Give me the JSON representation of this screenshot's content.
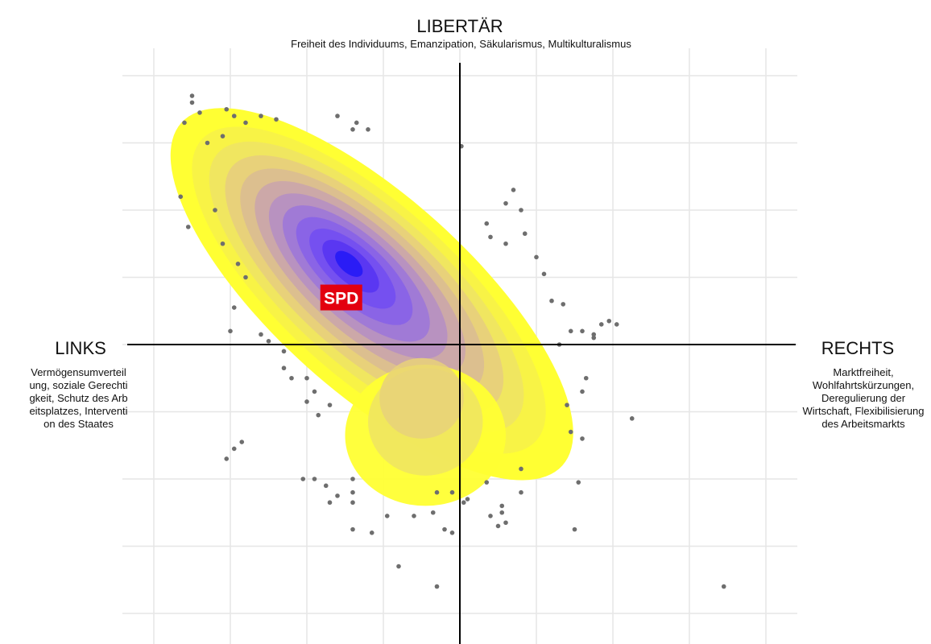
{
  "labels": {
    "top_title": "LIBERTÄR",
    "top_subtitle": "Freiheit des Individuums, Emanzipation, Säkularismus, Multikulturalismus",
    "left_title": "LINKS",
    "left_desc": "Vermögensumverteilung, soziale Gerechtigkeit, Schutz des Arbeitsplatzes, Intervention des Staates",
    "right_title": "RECHTS",
    "right_desc": "Marktfreiheit, Wohlfahrtskürzungen, Deregulierung der Wirtschaft, Flexibilisierung des Arbeitsmarkts"
  },
  "chart_data": {
    "type": "scatter",
    "subtype": "2d-density-contour",
    "title": "",
    "xlabel": "",
    "ylabel": "",
    "xlim": [
      -4,
      4
    ],
    "ylim": [
      -4,
      4
    ],
    "grid": true,
    "density_colors": [
      "#ffff33",
      "#f8f346",
      "#f0e660",
      "#e8d17a",
      "#dcbf8f",
      "#cca8a8",
      "#b892c0",
      "#a07ad6",
      "#8a64e6",
      "#7550f0",
      "#5a37f2",
      "#2a1cf6"
    ],
    "party_marker": {
      "label": "SPD",
      "x": -1.55,
      "y": 0.7,
      "color": "#e3000f"
    },
    "points": [
      [
        -3.5,
        3.7
      ],
      [
        -3.5,
        3.6
      ],
      [
        -3.6,
        3.3
      ],
      [
        -3.4,
        3.45
      ],
      [
        -3.05,
        3.5
      ],
      [
        -2.95,
        3.4
      ],
      [
        -3.1,
        3.1
      ],
      [
        -3.3,
        3.0
      ],
      [
        -2.8,
        3.3
      ],
      [
        -2.6,
        3.4
      ],
      [
        -2.4,
        3.35
      ],
      [
        -1.6,
        3.4
      ],
      [
        -1.4,
        3.2
      ],
      [
        -1.2,
        3.2
      ],
      [
        -1.35,
        3.3
      ],
      [
        0.02,
        2.95
      ],
      [
        -3.65,
        2.2
      ],
      [
        -3.55,
        1.75
      ],
      [
        -3.2,
        2.0
      ],
      [
        -3.1,
        1.5
      ],
      [
        -2.9,
        1.2
      ],
      [
        -2.8,
        1.0
      ],
      [
        -2.95,
        0.55
      ],
      [
        -3.0,
        0.2
      ],
      [
        -2.6,
        0.15
      ],
      [
        -2.5,
        0.05
      ],
      [
        -2.3,
        -0.1
      ],
      [
        -2.3,
        -0.35
      ],
      [
        -2.2,
        -0.5
      ],
      [
        -2.0,
        -0.5
      ],
      [
        -1.9,
        -0.7
      ],
      [
        -2.0,
        -0.85
      ],
      [
        -1.85,
        -1.05
      ],
      [
        -1.7,
        -0.9
      ],
      [
        -2.85,
        -1.45
      ],
      [
        -2.95,
        -1.55
      ],
      [
        -3.05,
        -1.7
      ],
      [
        -2.05,
        -2.0
      ],
      [
        -1.9,
        -2.0
      ],
      [
        -1.75,
        -2.1
      ],
      [
        -1.4,
        -2.0
      ],
      [
        -1.4,
        -2.2
      ],
      [
        -1.6,
        -2.25
      ],
      [
        -1.7,
        -2.35
      ],
      [
        -1.4,
        -2.35
      ],
      [
        -1.4,
        -2.75
      ],
      [
        -1.15,
        -2.8
      ],
      [
        -0.95,
        -2.55
      ],
      [
        -0.6,
        -2.55
      ],
      [
        -0.35,
        -2.5
      ],
      [
        -0.2,
        -2.75
      ],
      [
        -0.1,
        -2.8
      ],
      [
        -0.3,
        -2.2
      ],
      [
        -0.1,
        -2.2
      ],
      [
        -0.8,
        -3.3
      ],
      [
        -0.3,
        -3.6
      ],
      [
        0.05,
        -2.35
      ],
      [
        0.1,
        -2.3
      ],
      [
        0.4,
        -2.55
      ],
      [
        0.5,
        -2.7
      ],
      [
        0.6,
        -2.65
      ],
      [
        0.55,
        -2.4
      ],
      [
        0.8,
        -2.2
      ],
      [
        0.35,
        1.8
      ],
      [
        0.4,
        1.6
      ],
      [
        0.6,
        1.5
      ],
      [
        0.6,
        2.1
      ],
      [
        0.7,
        2.3
      ],
      [
        0.8,
        2.0
      ],
      [
        0.85,
        1.65
      ],
      [
        1.0,
        1.3
      ],
      [
        1.1,
        1.05
      ],
      [
        1.2,
        0.65
      ],
      [
        1.35,
        0.6
      ],
      [
        1.45,
        0.2
      ],
      [
        1.3,
        0.0
      ],
      [
        1.6,
        0.2
      ],
      [
        1.75,
        0.1
      ],
      [
        1.75,
        0.15
      ],
      [
        1.85,
        0.3
      ],
      [
        1.95,
        0.35
      ],
      [
        2.05,
        0.3
      ],
      [
        2.25,
        -1.1
      ],
      [
        1.65,
        -0.5
      ],
      [
        1.6,
        -0.7
      ],
      [
        1.4,
        -0.9
      ],
      [
        1.45,
        -1.3
      ],
      [
        1.6,
        -1.4
      ],
      [
        1.55,
        -2.05
      ],
      [
        1.5,
        -2.75
      ],
      [
        0.55,
        -2.5
      ],
      [
        0.35,
        -2.05
      ],
      [
        0.8,
        -1.85
      ],
      [
        3.45,
        -3.6
      ]
    ]
  }
}
